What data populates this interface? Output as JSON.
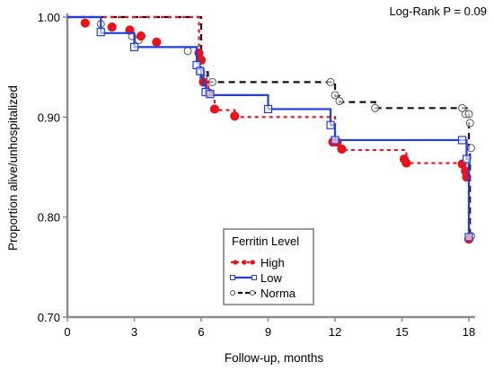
{
  "chart_data": {
    "type": "line",
    "subtype": "kaplan-meier step curves with censoring markers",
    "annotation": "Log-Rank P = 0.09",
    "xlabel": "Follow-up, months",
    "ylabel": "Proportion alive/unhospitalized",
    "xlim": [
      0,
      18
    ],
    "ylim": [
      0.7,
      1.0
    ],
    "x_ticks": [
      0,
      3,
      6,
      9,
      12,
      15,
      18
    ],
    "x_tick_labels": [
      "0",
      "3",
      "6",
      "9",
      "12",
      "15",
      "18"
    ],
    "y_ticks": [
      0.7,
      0.8,
      0.9,
      1.0
    ],
    "y_tick_labels": [
      "0.70",
      "0.80",
      "0.90",
      "1.00"
    ],
    "grid": false,
    "legend": {
      "title": "Ferritin Level",
      "placement": "bottom-center",
      "entries": [
        "High",
        "Low",
        "Norma"
      ]
    },
    "series": [
      {
        "name": "High",
        "color": "#e8141b",
        "line_style": "dotted",
        "marker": "filled-circle",
        "steps": [
          [
            0,
            1.0
          ],
          [
            5.9,
            0.967
          ],
          [
            6.0,
            0.955
          ],
          [
            6.1,
            0.935
          ],
          [
            6.3,
            0.93
          ],
          [
            6.4,
            0.922
          ],
          [
            6.6,
            0.907
          ],
          [
            7.5,
            0.9
          ],
          [
            12.0,
            0.874
          ],
          [
            12.3,
            0.867
          ],
          [
            15.2,
            0.854
          ],
          [
            17.8,
            0.846
          ],
          [
            17.9,
            0.838
          ],
          [
            18.0,
            0.778
          ]
        ],
        "censored": [
          [
            0.8,
            0.994
          ],
          [
            2.0,
            0.99
          ],
          [
            2.8,
            0.987
          ],
          [
            3.3,
            0.981
          ],
          [
            4.0,
            0.975
          ],
          [
            5.9,
            0.964
          ],
          [
            6.0,
            0.957
          ],
          [
            6.1,
            0.935
          ],
          [
            6.35,
            0.924
          ],
          [
            6.6,
            0.908
          ],
          [
            7.5,
            0.901
          ],
          [
            11.9,
            0.875
          ],
          [
            12.1,
            0.875
          ],
          [
            12.3,
            0.868
          ],
          [
            15.1,
            0.858
          ],
          [
            15.2,
            0.854
          ],
          [
            17.7,
            0.853
          ],
          [
            17.85,
            0.846
          ],
          [
            17.9,
            0.84
          ],
          [
            18.0,
            0.778
          ]
        ]
      },
      {
        "name": "Low",
        "color": "#1f3fe0",
        "line_style": "solid",
        "marker": "open-square",
        "steps": [
          [
            0,
            1.0
          ],
          [
            1.5,
            0.984
          ],
          [
            3.0,
            0.97
          ],
          [
            5.8,
            0.955
          ],
          [
            5.9,
            0.948
          ],
          [
            6.0,
            0.94
          ],
          [
            6.1,
            0.932
          ],
          [
            6.2,
            0.925
          ],
          [
            6.4,
            0.922
          ],
          [
            9.0,
            0.908
          ],
          [
            11.8,
            0.892
          ],
          [
            12.0,
            0.877
          ],
          [
            17.7,
            0.877
          ],
          [
            17.9,
            0.858
          ],
          [
            18.0,
            0.78
          ]
        ],
        "censored": [
          [
            1.5,
            0.985
          ],
          [
            3.0,
            0.97
          ],
          [
            5.8,
            0.952
          ],
          [
            5.95,
            0.946
          ],
          [
            6.2,
            0.925
          ],
          [
            6.4,
            0.923
          ],
          [
            9.0,
            0.908
          ],
          [
            11.8,
            0.892
          ],
          [
            12.0,
            0.877
          ],
          [
            17.7,
            0.877
          ],
          [
            17.9,
            0.858
          ],
          [
            18.0,
            0.78
          ]
        ]
      },
      {
        "name": "Norma",
        "color": "#111111",
        "line_style": "dashed",
        "marker": "open-circle",
        "steps": [
          [
            0,
            1.0
          ],
          [
            6.0,
            0.945
          ],
          [
            6.3,
            0.935
          ],
          [
            11.8,
            0.935
          ],
          [
            12.0,
            0.921
          ],
          [
            12.2,
            0.915
          ],
          [
            13.8,
            0.909
          ],
          [
            17.8,
            0.909
          ],
          [
            17.9,
            0.902
          ],
          [
            18.0,
            0.868
          ],
          [
            18.05,
            0.78
          ]
        ],
        "censored": [
          [
            1.5,
            0.993
          ],
          [
            2.9,
            0.981
          ],
          [
            3.2,
            0.977
          ],
          [
            5.4,
            0.966
          ],
          [
            6.0,
            0.945
          ],
          [
            6.1,
            0.939
          ],
          [
            6.5,
            0.935
          ],
          [
            11.8,
            0.935
          ],
          [
            12.0,
            0.922
          ],
          [
            12.2,
            0.916
          ],
          [
            13.8,
            0.909
          ],
          [
            17.7,
            0.909
          ],
          [
            17.85,
            0.903
          ],
          [
            18.0,
            0.903
          ],
          [
            18.05,
            0.894
          ],
          [
            18.1,
            0.869
          ],
          [
            18.1,
            0.781
          ]
        ]
      }
    ]
  }
}
